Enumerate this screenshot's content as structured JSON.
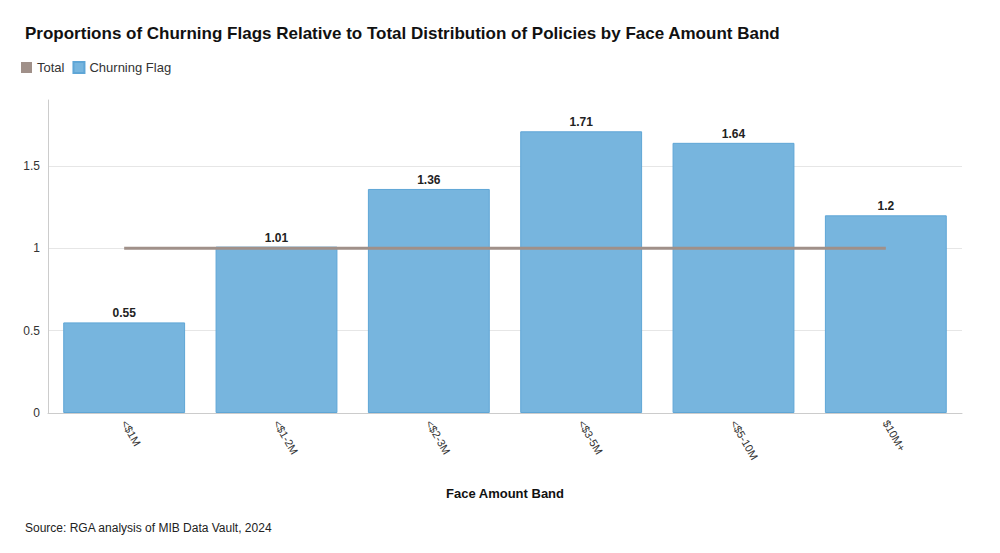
{
  "chart_data": {
    "type": "bar",
    "title": "Proportions of Churning Flags Relative to Total Distribution of Policies by Face Amount Band",
    "x_label": "Face Amount Band",
    "source": "Source: RGA analysis of MIB Data Vault, 2024",
    "categories": [
      "<$1M",
      "<$1-2M",
      "<$2-3M",
      "<$3-5M",
      "<$5-10M",
      "$10M+"
    ],
    "series": [
      {
        "name": "Total",
        "type": "line",
        "color": "#a09089",
        "line_style": "solid",
        "values": [
          1,
          1,
          1,
          1,
          1,
          1
        ]
      },
      {
        "name": "Churning Flag",
        "type": "bar",
        "color": "#77b5de",
        "data_labels": true,
        "values": [
          0.55,
          1.01,
          1.36,
          1.71,
          1.64,
          1.2
        ]
      }
    ],
    "ylim": [
      0,
      1.9
    ],
    "yticks": [
      0,
      0.5,
      1,
      1.5
    ],
    "grid": true,
    "legend": "top-left"
  }
}
